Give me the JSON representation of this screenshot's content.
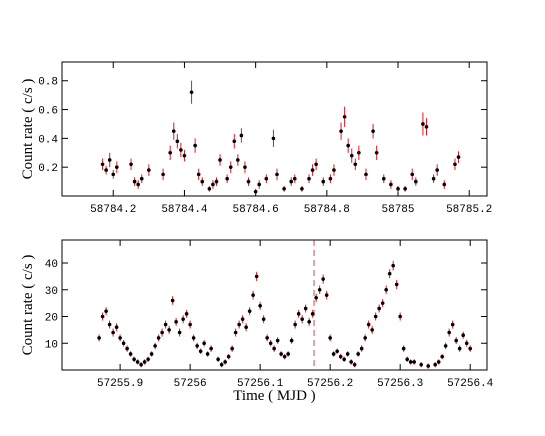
{
  "chart_data": [
    {
      "type": "scatter",
      "ylabel": "Count rate  ( c/s )",
      "xlim": [
        58784.056,
        58785.25
      ],
      "ylim": [
        0,
        0.93
      ],
      "xticks": [
        58784.2,
        58784.4,
        58784.6,
        58784.8,
        58785,
        58785.2
      ],
      "yticks": [
        0.2,
        0.4,
        0.6,
        0.8
      ],
      "series": [
        {
          "color": "#000000",
          "error_color": "#e8161b",
          "x": [
            58784.17,
            58784.18,
            58784.19,
            58784.2,
            58784.21,
            58784.25,
            58784.26,
            58784.27,
            58784.28,
            58784.3,
            58784.34,
            58784.36,
            58784.37,
            58784.38,
            58784.39,
            58784.4,
            58784.42,
            58784.43,
            58784.44,
            58784.45,
            58784.47,
            58784.48,
            58784.49,
            58784.5,
            58784.52,
            58784.53,
            58784.54,
            58784.55,
            58784.56,
            58784.57,
            58784.58,
            58784.6,
            58784.61,
            58784.63,
            58784.65,
            58784.66,
            58784.68,
            58784.7,
            58784.71,
            58784.73,
            58784.75,
            58784.76,
            58784.77,
            58784.79,
            58784.81,
            58784.82,
            58784.84,
            58784.85,
            58784.86,
            58784.87,
            58784.88,
            58784.89,
            58784.91,
            58784.93,
            58784.94,
            58784.96,
            58784.98,
            58785,
            58785.02,
            58785.04,
            58785.05,
            58785.07,
            58785.08,
            58785.1,
            58785.11,
            58785.13,
            58785.16,
            58785.17
          ],
          "values": [
            0.22,
            0.18,
            0.25,
            0.15,
            0.2,
            0.22,
            0.1,
            0.08,
            0.12,
            0.18,
            0.15,
            0.3,
            0.45,
            0.38,
            0.32,
            0.28,
            0.72,
            0.35,
            0.15,
            0.1,
            0.05,
            0.08,
            0.1,
            0.25,
            0.12,
            0.2,
            0.38,
            0.25,
            0.42,
            0.2,
            0.1,
            0.03,
            0.08,
            0.12,
            0.4,
            0.15,
            0.05,
            0.1,
            0.12,
            0.05,
            0.12,
            0.18,
            0.22,
            0.1,
            0.12,
            0.18,
            0.45,
            0.55,
            0.35,
            0.28,
            0.22,
            0.3,
            0.15,
            0.45,
            0.3,
            0.12,
            0.08,
            0.05,
            0.05,
            0.15,
            0.1,
            0.5,
            0.48,
            0.12,
            0.18,
            0.08,
            0.22,
            0.27
          ],
          "errors": [
            0.04,
            0.03,
            0.05,
            0.03,
            0.04,
            0.04,
            0.03,
            0.03,
            0.03,
            0.04,
            0.04,
            0.05,
            0.06,
            0.05,
            0.05,
            0.04,
            0.08,
            0.05,
            0.04,
            0.03,
            0.02,
            0.03,
            0.03,
            0.04,
            0.03,
            0.04,
            0.05,
            0.04,
            0.05,
            0.04,
            0.03,
            0.02,
            0.03,
            0.03,
            0.06,
            0.04,
            0.02,
            0.03,
            0.03,
            0.02,
            0.03,
            0.04,
            0.04,
            0.03,
            0.03,
            0.04,
            0.06,
            0.07,
            0.05,
            0.05,
            0.04,
            0.05,
            0.04,
            0.05,
            0.05,
            0.03,
            0.03,
            0.02,
            0.02,
            0.04,
            0.03,
            0.08,
            0.06,
            0.03,
            0.04,
            0.03,
            0.04,
            0.04
          ]
        }
      ]
    },
    {
      "type": "scatter",
      "xlabel": "Time  ( MJD )",
      "ylabel": "Count rate  ( c/s )",
      "xlim": [
        57255.817,
        57256.424
      ],
      "ylim": [
        0,
        48.6
      ],
      "xticks": [
        57255.9,
        57256,
        57256.1,
        57256.2,
        57256.3,
        57256.4
      ],
      "yticks": [
        10,
        20,
        30,
        40
      ],
      "vline": {
        "x": 57256.177,
        "color": "#d98a8a"
      },
      "series": [
        {
          "color": "#000000",
          "error_color": "#e8161b",
          "x": [
            57255.87,
            57255.875,
            57255.88,
            57255.885,
            57255.89,
            57255.895,
            57255.9,
            57255.905,
            57255.91,
            57255.915,
            57255.92,
            57255.925,
            57255.93,
            57255.935,
            57255.94,
            57255.945,
            57255.95,
            57255.955,
            57255.96,
            57255.965,
            57255.97,
            57255.975,
            57255.98,
            57255.985,
            57255.99,
            57255.995,
            57256,
            57256.005,
            57256.01,
            57256.015,
            57256.02,
            57256.025,
            57256.03,
            57256.04,
            57256.045,
            57256.05,
            57256.055,
            57256.06,
            57256.065,
            57256.07,
            57256.075,
            57256.08,
            57256.085,
            57256.09,
            57256.095,
            57256.1,
            57256.105,
            57256.11,
            57256.115,
            57256.12,
            57256.125,
            57256.13,
            57256.135,
            57256.14,
            57256.145,
            57256.15,
            57256.155,
            57256.16,
            57256.165,
            57256.17,
            57256.175,
            57256.18,
            57256.185,
            57256.19,
            57256.195,
            57256.2,
            57256.205,
            57256.21,
            57256.215,
            57256.22,
            57256.225,
            57256.23,
            57256.235,
            57256.24,
            57256.245,
            57256.25,
            57256.255,
            57256.26,
            57256.265,
            57256.27,
            57256.275,
            57256.28,
            57256.285,
            57256.29,
            57256.295,
            57256.3,
            57256.305,
            57256.31,
            57256.315,
            57256.32,
            57256.33,
            57256.34,
            57256.35,
            57256.355,
            57256.36,
            57256.365,
            57256.37,
            57256.375,
            57256.38,
            57256.385,
            57256.39,
            57256.395,
            57256.4
          ],
          "values": [
            12,
            20,
            22,
            17,
            14,
            16,
            12,
            10,
            8,
            6,
            4,
            3,
            2,
            3,
            4,
            6,
            9,
            12,
            14,
            17,
            15,
            26,
            18,
            14,
            19,
            21,
            17,
            12,
            9,
            7,
            10,
            6,
            8,
            4,
            2,
            3,
            5,
            8,
            14,
            17,
            19,
            16,
            22,
            28,
            35,
            24,
            19,
            12,
            10,
            8,
            11,
            6,
            5,
            6,
            11,
            17,
            21,
            19,
            23,
            18,
            21,
            27,
            30,
            34,
            28,
            12,
            6,
            7,
            5,
            4,
            6,
            3,
            2,
            6,
            8,
            12,
            17,
            15,
            20,
            23,
            25,
            30,
            36,
            39,
            32,
            20,
            8,
            4,
            3,
            3,
            2,
            1.5,
            2,
            3,
            5,
            9,
            14,
            17,
            11,
            8,
            13,
            10,
            8
          ],
          "errors": [
            1.3,
            1.5,
            1.5,
            1.5,
            1.5,
            1.5,
            1.3,
            1.2,
            1.2,
            1,
            1,
            1,
            1,
            1,
            1,
            1,
            1.2,
            1.3,
            1.5,
            1.5,
            1.5,
            1.6,
            1.5,
            1.5,
            1.5,
            1.5,
            1.5,
            1.3,
            1.2,
            1,
            1.2,
            1,
            1.2,
            1,
            1,
            1,
            1,
            1.2,
            1.5,
            1.5,
            1.5,
            1.5,
            1.5,
            1.6,
            1.7,
            1.5,
            1.5,
            1.3,
            1.2,
            1.2,
            1.2,
            1,
            1,
            1,
            1.2,
            1.5,
            1.5,
            1.5,
            1.5,
            1.5,
            1.5,
            1.6,
            1.6,
            1.7,
            1.6,
            1.3,
            1,
            1,
            1,
            1,
            1,
            1,
            1,
            1,
            1.2,
            1.3,
            1.5,
            1.5,
            1.5,
            1.5,
            1.5,
            1.6,
            1.7,
            1.8,
            1.7,
            1.5,
            1.2,
            1,
            1,
            1,
            1,
            1,
            1,
            1,
            1,
            1.2,
            1.5,
            1.5,
            1.3,
            1.2,
            1.3,
            1.3,
            1.2
          ]
        }
      ]
    }
  ]
}
